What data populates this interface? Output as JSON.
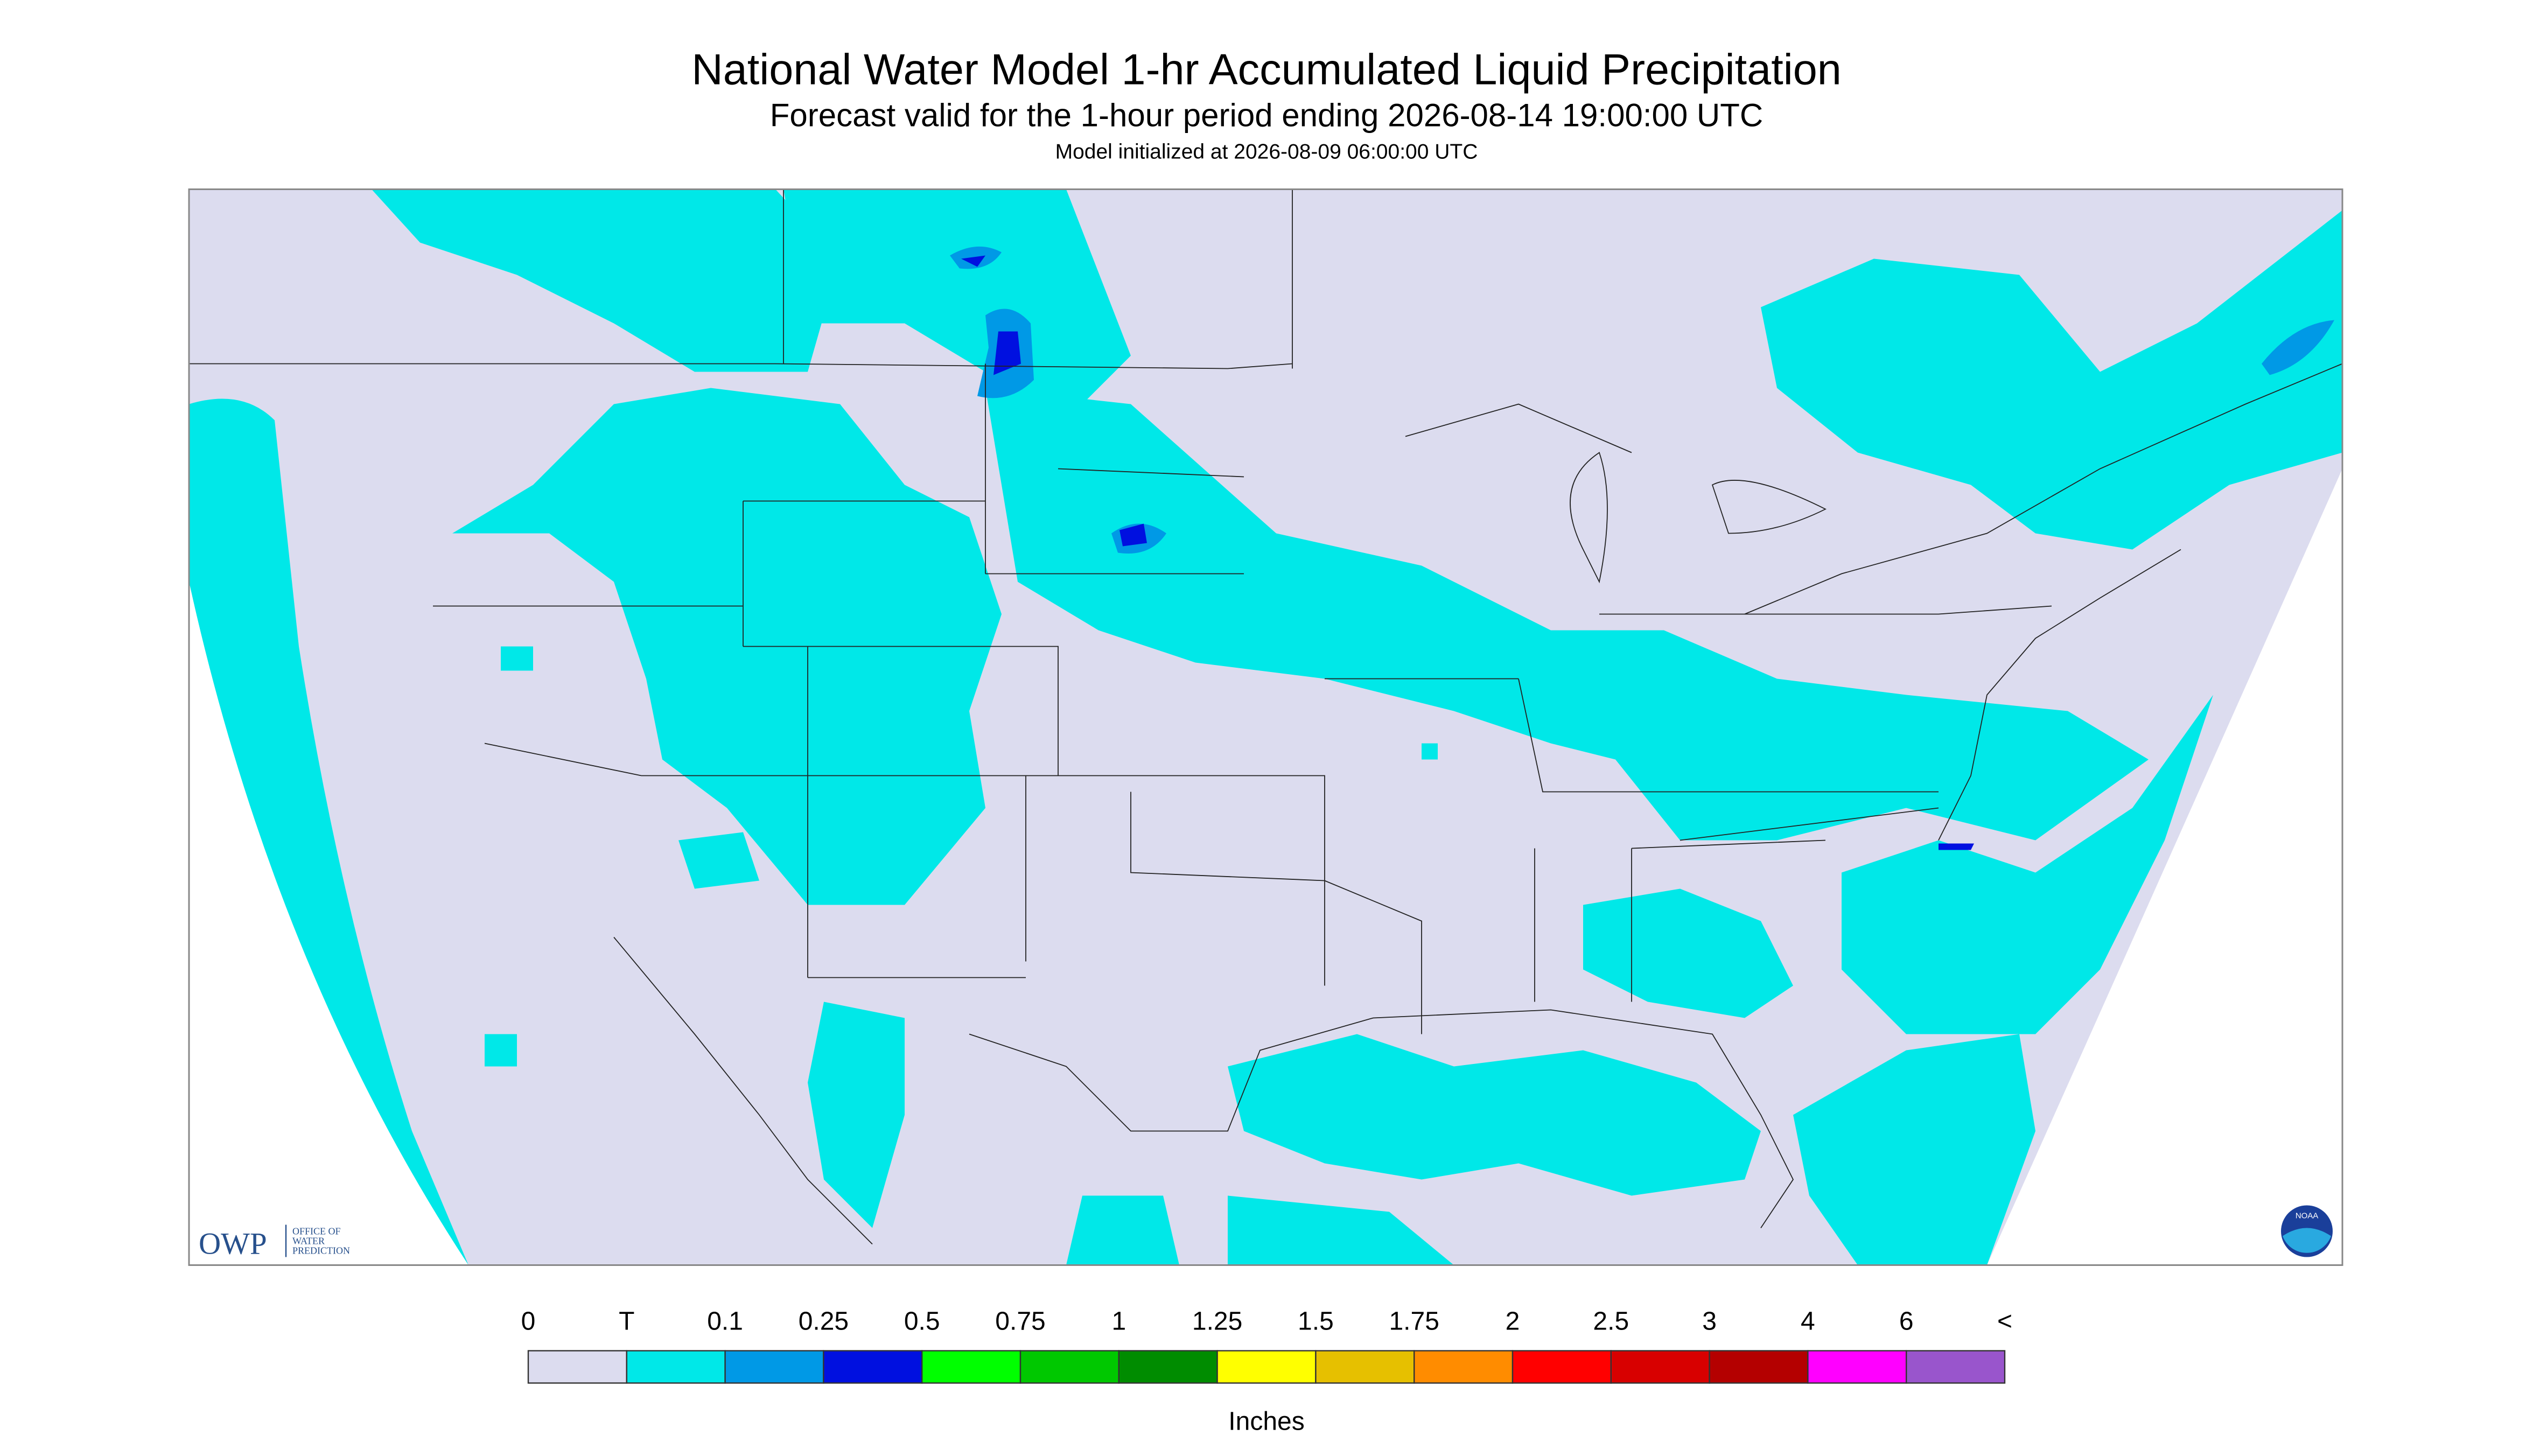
{
  "header": {
    "title": "National Water Model 1-hr Accumulated Liquid Precipitation",
    "subtitle": "Forecast valid for the 1-hour period ending 2026-08-14 19:00:00 UTC",
    "initialized": "Model initialized at 2026-08-09 06:00:00 UTC"
  },
  "legend": {
    "labels": [
      "0",
      "T",
      "0.1",
      "0.25",
      "0.5",
      "0.75",
      "1",
      "1.25",
      "1.5",
      "1.75",
      "2",
      "2.5",
      "3",
      "4",
      "6",
      "<"
    ],
    "colors": [
      "#dcdcef",
      "#00e8e8",
      "#0099e6",
      "#0010e0",
      "#00ff00",
      "#00c800",
      "#008c00",
      "#ffff00",
      "#e6c000",
      "#ff8c00",
      "#ff0000",
      "#d80000",
      "#b40000",
      "#ff00ff",
      "#9955cc"
    ],
    "unit": "Inches"
  },
  "logo": {
    "text": "OWP",
    "subtext": [
      "OFFICE OF",
      "WATER",
      "PREDICTION"
    ]
  },
  "noaa": "NOAA"
}
